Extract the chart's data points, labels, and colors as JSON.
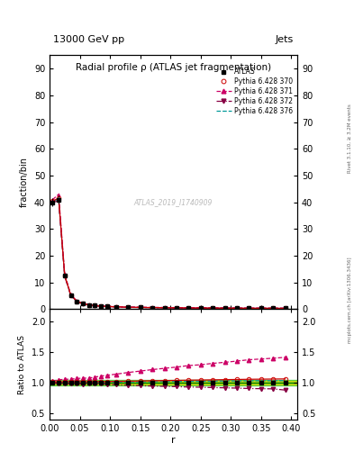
{
  "title": "Radial profile ρ (ATLAS jet fragmentation)",
  "top_label_left": "13000 GeV pp",
  "top_label_right": "Jets",
  "ylabel_main": "fraction/bin",
  "ylabel_ratio": "Ratio to ATLAS",
  "xlabel": "r",
  "watermark": "ATLAS_2019_I1740909",
  "right_label": "Rivet 3.1.10, ≥ 3.2M events",
  "right_label2": "mcplots.cern.ch [arXiv:1306.3436]",
  "ylim_main": [
    0,
    95
  ],
  "ylim_ratio": [
    0.4,
    2.2
  ],
  "yticks_main": [
    0,
    10,
    20,
    30,
    40,
    50,
    60,
    70,
    80,
    90
  ],
  "yticks_ratio": [
    0.5,
    1.0,
    1.5,
    2.0
  ],
  "r_values": [
    0.005,
    0.015,
    0.025,
    0.035,
    0.045,
    0.055,
    0.065,
    0.075,
    0.085,
    0.095,
    0.11,
    0.13,
    0.15,
    0.17,
    0.19,
    0.21,
    0.23,
    0.25,
    0.27,
    0.29,
    0.31,
    0.33,
    0.35,
    0.37,
    0.39
  ],
  "atlas_values": [
    40.0,
    41.0,
    12.5,
    5.2,
    2.9,
    2.0,
    1.6,
    1.3,
    1.1,
    1.0,
    0.85,
    0.72,
    0.63,
    0.56,
    0.51,
    0.47,
    0.43,
    0.41,
    0.38,
    0.36,
    0.34,
    0.32,
    0.31,
    0.3,
    0.29
  ],
  "atlas_err": [
    1.5,
    1.5,
    0.5,
    0.2,
    0.12,
    0.08,
    0.06,
    0.05,
    0.04,
    0.04,
    0.03,
    0.03,
    0.025,
    0.02,
    0.02,
    0.018,
    0.016,
    0.015,
    0.014,
    0.013,
    0.012,
    0.011,
    0.011,
    0.01,
    0.01
  ],
  "p370_values": [
    40.5,
    41.5,
    12.7,
    5.3,
    2.95,
    2.05,
    1.62,
    1.33,
    1.12,
    1.02,
    0.87,
    0.74,
    0.65,
    0.58,
    0.53,
    0.49,
    0.45,
    0.43,
    0.4,
    0.38,
    0.36,
    0.34,
    0.33,
    0.32,
    0.31
  ],
  "p371_values": [
    41.0,
    43.0,
    13.2,
    5.5,
    3.1,
    2.15,
    1.72,
    1.42,
    1.22,
    1.12,
    0.97,
    0.84,
    0.75,
    0.68,
    0.63,
    0.59,
    0.55,
    0.53,
    0.5,
    0.48,
    0.46,
    0.44,
    0.43,
    0.42,
    0.41
  ],
  "p372_values": [
    40.0,
    40.5,
    12.3,
    5.1,
    2.85,
    1.95,
    1.58,
    1.28,
    1.08,
    0.97,
    0.82,
    0.69,
    0.6,
    0.53,
    0.48,
    0.44,
    0.4,
    0.38,
    0.35,
    0.33,
    0.31,
    0.29,
    0.28,
    0.27,
    0.26
  ],
  "p376_values": [
    40.2,
    41.2,
    12.6,
    5.25,
    2.92,
    2.02,
    1.61,
    1.31,
    1.1,
    1.01,
    0.86,
    0.73,
    0.64,
    0.57,
    0.52,
    0.48,
    0.44,
    0.42,
    0.39,
    0.37,
    0.35,
    0.33,
    0.32,
    0.31,
    0.3
  ],
  "ratio370": [
    1.01,
    1.01,
    1.015,
    1.02,
    1.017,
    1.02,
    1.012,
    1.02,
    1.018,
    1.02,
    1.022,
    1.025,
    1.028,
    1.032,
    1.035,
    1.038,
    1.042,
    1.044,
    1.047,
    1.05,
    1.053,
    1.056,
    1.058,
    1.06,
    1.062
  ],
  "ratio371": [
    1.025,
    1.048,
    1.056,
    1.058,
    1.069,
    1.075,
    1.075,
    1.092,
    1.109,
    1.12,
    1.14,
    1.167,
    1.19,
    1.214,
    1.235,
    1.255,
    1.28,
    1.293,
    1.316,
    1.333,
    1.353,
    1.375,
    1.387,
    1.4,
    1.414
  ],
  "ratio372": [
    1.0,
    0.988,
    0.984,
    0.981,
    0.983,
    0.975,
    0.9875,
    0.985,
    0.982,
    0.97,
    0.965,
    0.958,
    0.952,
    0.946,
    0.941,
    0.936,
    0.93,
    0.927,
    0.921,
    0.917,
    0.912,
    0.906,
    0.903,
    0.9,
    0.88
  ],
  "ratio376": [
    1.005,
    1.005,
    1.008,
    1.01,
    1.007,
    1.01,
    1.006,
    1.008,
    1.0,
    1.01,
    1.012,
    1.014,
    1.016,
    1.018,
    1.02,
    1.021,
    1.023,
    1.024,
    1.026,
    1.028,
    1.029,
    1.031,
    1.032,
    1.033,
    1.034
  ],
  "color_atlas": "#000000",
  "color_370": "#cc0000",
  "color_371": "#cc0066",
  "color_372": "#880044",
  "color_376": "#009999",
  "band_green": "#00bb00",
  "band_yellow": "#dddd00"
}
